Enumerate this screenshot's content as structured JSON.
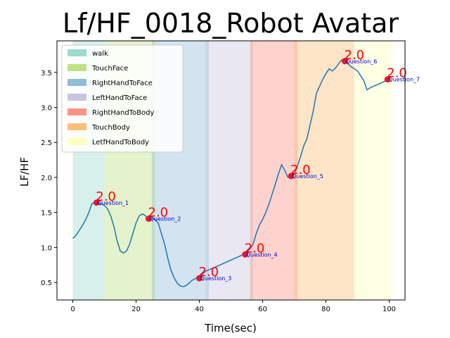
{
  "chart_data": {
    "type": "line",
    "title": "Lf/HF_0018_Robot Avatar",
    "xlabel": "Time(sec)",
    "ylabel": "LF/HF",
    "xlim": [
      -5,
      105
    ],
    "ylim": [
      0.25,
      3.95
    ],
    "x_ticks": [
      0,
      20,
      40,
      60,
      80,
      100
    ],
    "y_ticks": [
      0.5,
      1.0,
      1.5,
      2.0,
      2.5,
      3.0,
      3.5
    ],
    "x_tick_labels": [
      "0",
      "20",
      "40",
      "60",
      "80",
      "100"
    ],
    "y_tick_labels": [
      "0.5",
      "1.0",
      "1.5",
      "2.0",
      "2.5",
      "3.0",
      "3.5"
    ],
    "line_color": "#1f77b4",
    "legend_position": "upper-left",
    "regions": [
      {
        "name": "walk",
        "start": 0,
        "end": 10,
        "color": "#8dd3c7"
      },
      {
        "name": "TouchFace",
        "start": 10,
        "end": 26,
        "color": "#b3de69"
      },
      {
        "name": "RightHandToFace",
        "start": 25,
        "end": 43,
        "color": "#80b1d3"
      },
      {
        "name": "LeftHandToFace",
        "start": 42,
        "end": 57,
        "color": "#bebada"
      },
      {
        "name": "RightHandToBody",
        "start": 56,
        "end": 71,
        "color": "#fb8072"
      },
      {
        "name": "TouchBody",
        "start": 70,
        "end": 89,
        "color": "#fdb462"
      },
      {
        "name": "LetfHandToBody",
        "start": 89,
        "end": 101,
        "color": "#ffffb3"
      }
    ],
    "series": [
      {
        "x": [
          0,
          1,
          2,
          3,
          4,
          5,
          6,
          7,
          8,
          9,
          10,
          11,
          12,
          13,
          14,
          15,
          16,
          17,
          18,
          19,
          20,
          21,
          22,
          23,
          24,
          25,
          26,
          27,
          28,
          29,
          30,
          31,
          32,
          33,
          34,
          35,
          36,
          37,
          38,
          39,
          40,
          41,
          42,
          43,
          44,
          45,
          46,
          47,
          48,
          49,
          50,
          51,
          52,
          53,
          54,
          55,
          56,
          57,
          58,
          59,
          60,
          61,
          62,
          63,
          64,
          65,
          66,
          67,
          68,
          69,
          70,
          71,
          72,
          73,
          74,
          75,
          76,
          77,
          78,
          79,
          80,
          81,
          82,
          83,
          84,
          85,
          86,
          87,
          88,
          89,
          90,
          91,
          92,
          93,
          94,
          95,
          96,
          97,
          98,
          99,
          100
        ],
        "y": [
          1.13,
          1.17,
          1.24,
          1.31,
          1.39,
          1.49,
          1.62,
          1.65,
          1.64,
          1.62,
          1.6,
          1.55,
          1.45,
          1.3,
          1.1,
          0.95,
          0.92,
          0.95,
          1.05,
          1.2,
          1.35,
          1.45,
          1.48,
          1.45,
          1.41,
          1.42,
          1.4,
          1.35,
          1.2,
          1.05,
          0.85,
          0.68,
          0.57,
          0.49,
          0.45,
          0.44,
          0.46,
          0.5,
          0.54,
          0.56,
          0.58,
          0.62,
          0.66,
          0.68,
          0.7,
          0.72,
          0.74,
          0.76,
          0.78,
          0.8,
          0.82,
          0.84,
          0.86,
          0.88,
          0.9,
          0.93,
          0.98,
          1.05,
          1.2,
          1.32,
          1.4,
          1.5,
          1.62,
          1.76,
          1.9,
          2.05,
          2.18,
          2.1,
          2.0,
          2.02,
          2.05,
          2.16,
          2.3,
          2.45,
          2.55,
          2.75,
          2.95,
          3.2,
          3.3,
          3.4,
          3.48,
          3.55,
          3.52,
          3.56,
          3.62,
          3.68,
          3.66,
          3.62,
          3.58,
          3.55,
          3.52,
          3.45,
          3.38,
          3.25,
          3.28,
          3.3,
          3.32,
          3.34,
          3.36,
          3.38,
          3.4
        ]
      }
    ],
    "annotations": [
      {
        "x": 7.5,
        "y": 1.64,
        "label": "Question_1",
        "value": "2.0"
      },
      {
        "x": 24,
        "y": 1.41,
        "label": "Question_2",
        "value": "2.0"
      },
      {
        "x": 40,
        "y": 0.56,
        "label": "Question_3",
        "value": "2.0"
      },
      {
        "x": 54.5,
        "y": 0.9,
        "label": "Question_4",
        "value": "2.0"
      },
      {
        "x": 69,
        "y": 2.02,
        "label": "Question_5",
        "value": "2.0"
      },
      {
        "x": 86,
        "y": 3.66,
        "label": "Question_6",
        "value": "2.0"
      },
      {
        "x": 99.5,
        "y": 3.4,
        "label": "Question_7",
        "value": "2.0"
      }
    ]
  }
}
